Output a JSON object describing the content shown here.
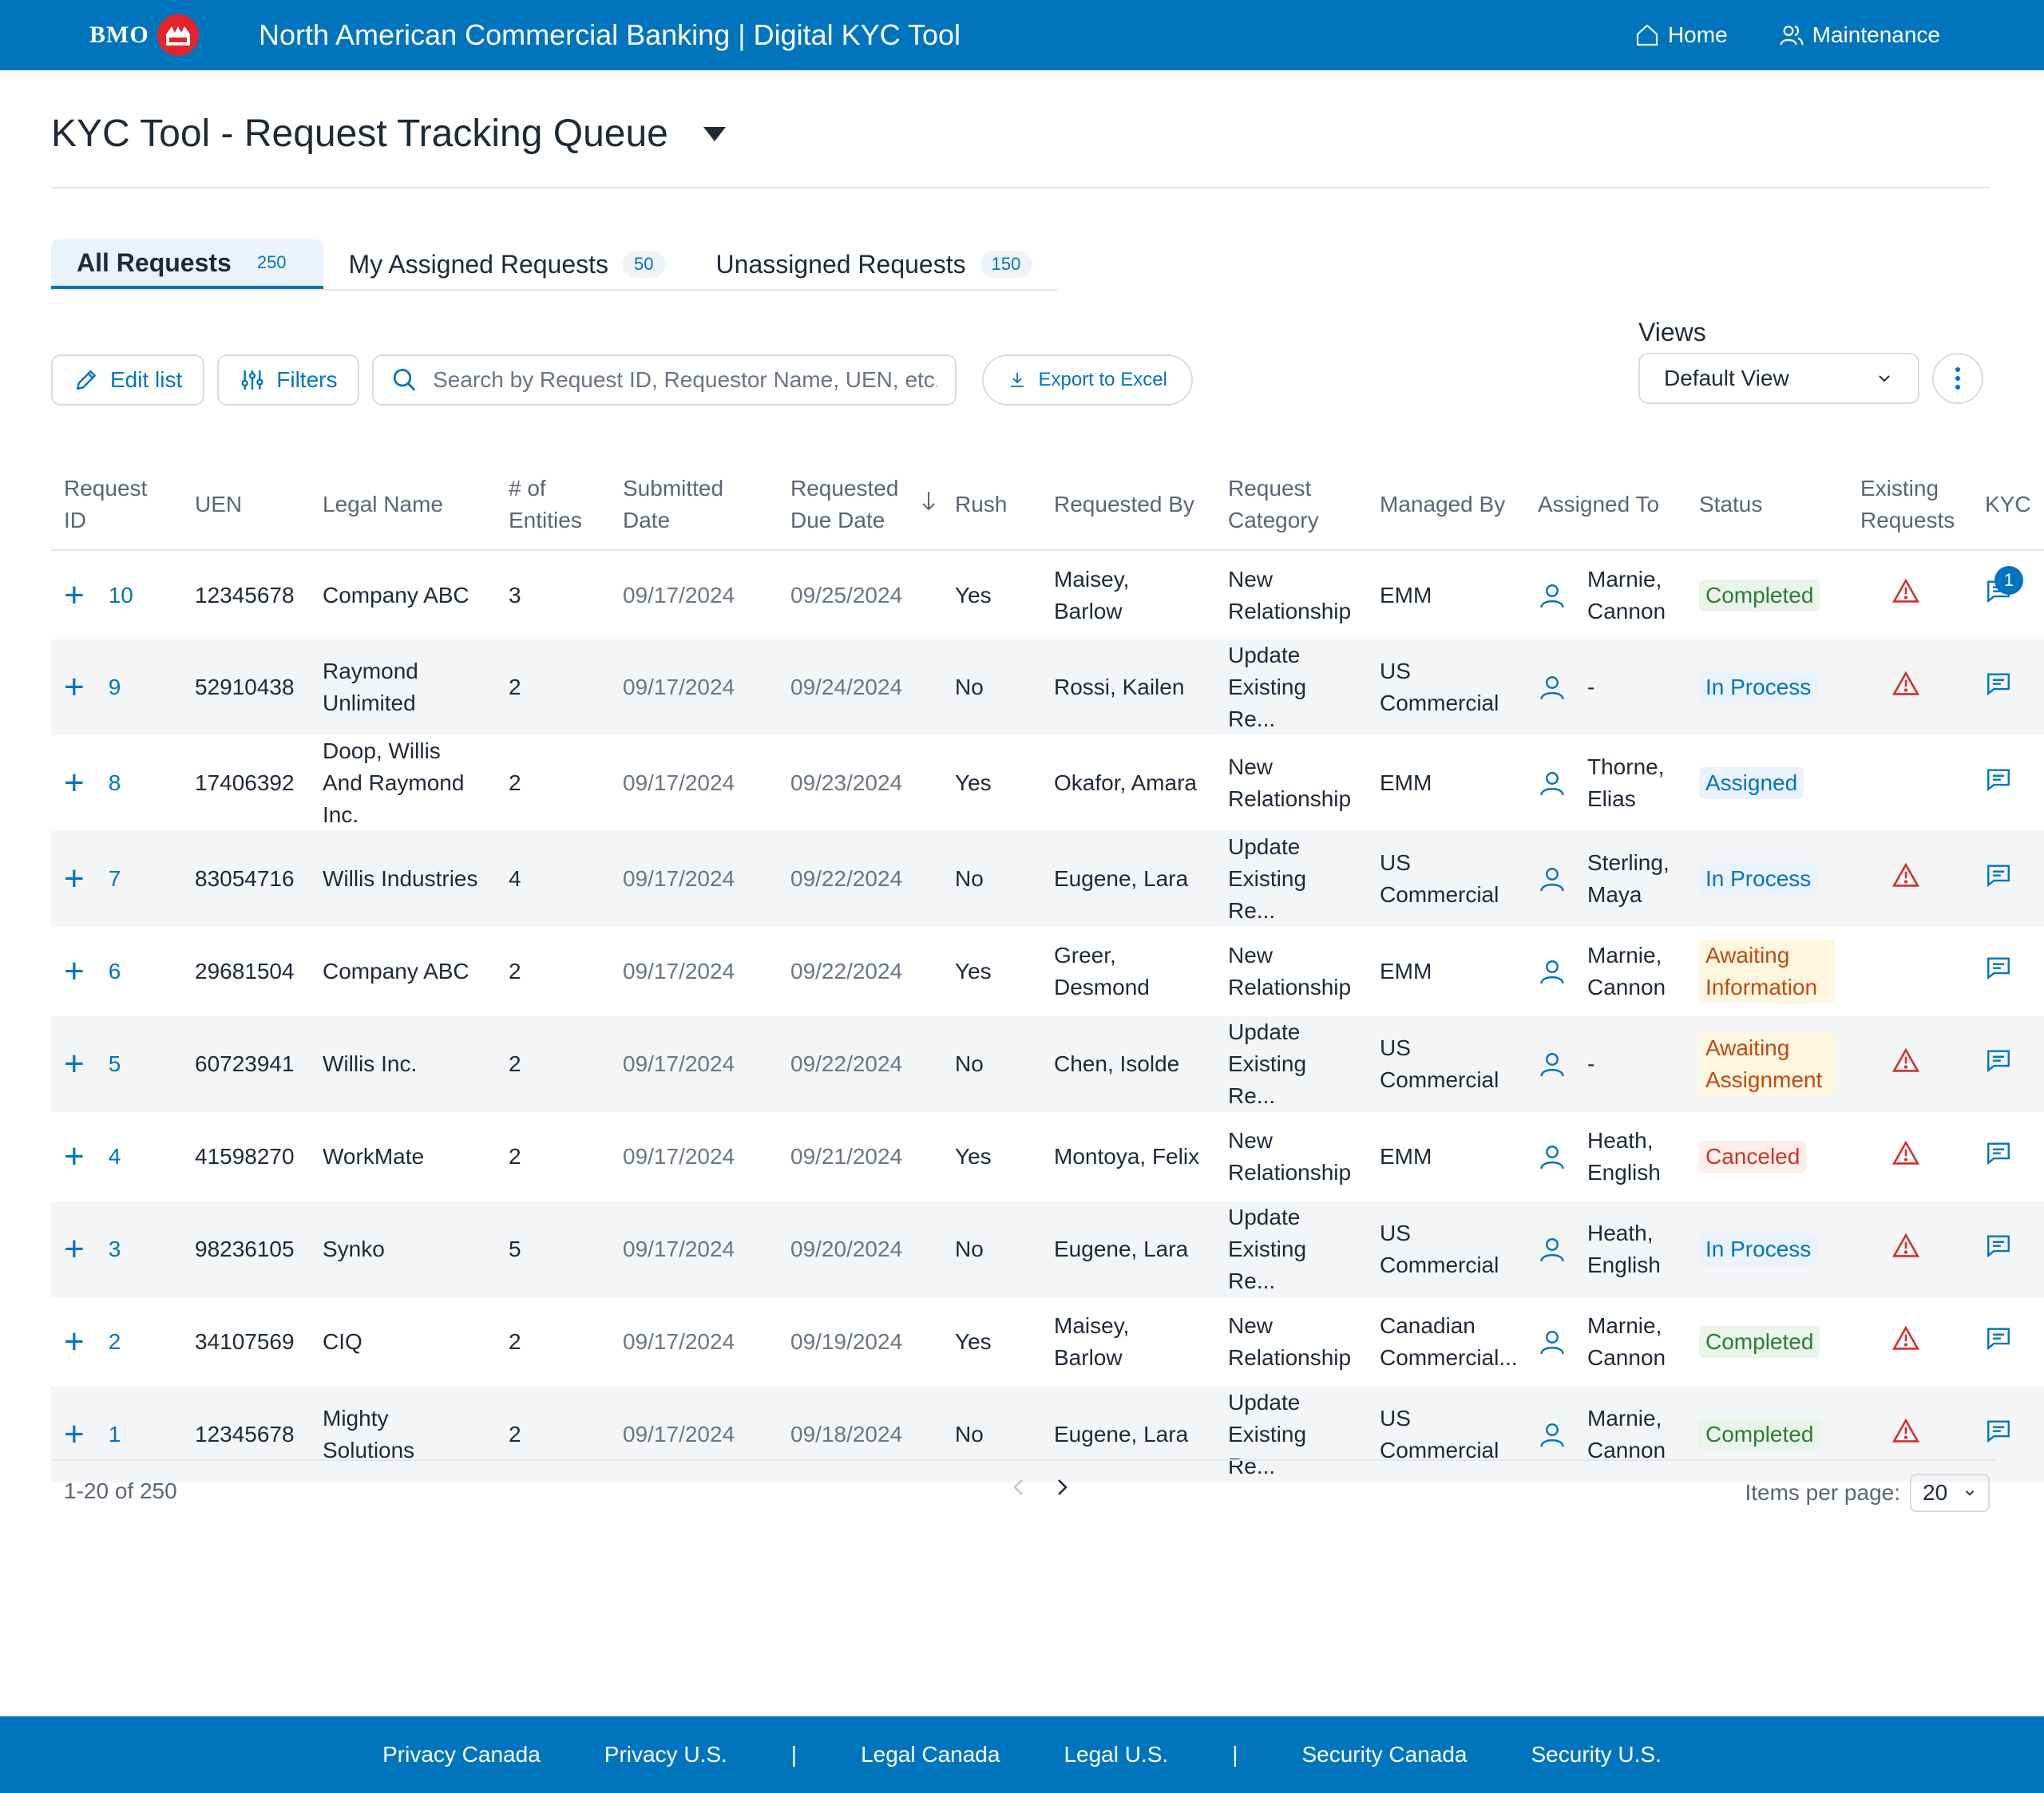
{
  "header": {
    "brand": "BMO",
    "app_title": "North American Commercial Banking | Digital KYC Tool",
    "nav": [
      {
        "label": "Home",
        "icon": "home-icon"
      },
      {
        "label": "Maintenance",
        "icon": "users-icon"
      }
    ],
    "colors": {
      "primary": "#0075be",
      "brand_red": "#e3242b"
    }
  },
  "page": {
    "title": "KYC Tool - Request Tracking Queue"
  },
  "tabs": [
    {
      "label": "All Requests",
      "count": "250",
      "active": true
    },
    {
      "label": "My Assigned Requests",
      "count": "50",
      "active": false
    },
    {
      "label": "Unassigned Requests",
      "count": "150",
      "active": false
    }
  ],
  "toolbar": {
    "edit_label": "Edit list",
    "filters_label": "Filters",
    "search_placeholder": "Search by Request ID, Requestor Name, UEN, etc.",
    "export_label": "Export to Excel"
  },
  "views": {
    "label": "Views",
    "selected": "Default View"
  },
  "table": {
    "columns": [
      "Request ID",
      "UEN",
      "Legal Name",
      "# of Entities",
      "Submitted Date",
      "Requested Due Date",
      "Rush",
      "Requested By",
      "Request Category",
      "Managed By",
      "Assigned To",
      "Status",
      "Existing Requests",
      "KYC"
    ],
    "sort_column": "Requested Due Date",
    "rows": [
      {
        "id": "10",
        "uen": "12345678",
        "legal_name": "Company ABC",
        "entities": "3",
        "submitted": "09/17/2024",
        "due": "09/25/2024",
        "rush": "Yes",
        "requested_by": "Maisey, Barlow",
        "category": "New Relationship",
        "managed_by": "EMM",
        "assigned_to": "Marnie, Cannon",
        "status": "Completed",
        "status_type": "completed",
        "warning": true,
        "kyc_count": "1"
      },
      {
        "id": "9",
        "uen": "52910438",
        "legal_name": "Raymond Unlimited",
        "entities": "2",
        "submitted": "09/17/2024",
        "due": "09/24/2024",
        "rush": "No",
        "requested_by": "Rossi, Kailen",
        "category": "Update Existing Re...",
        "managed_by": "US Commercial",
        "assigned_to": "-",
        "status": "In Process",
        "status_type": "process",
        "warning": true,
        "kyc_count": ""
      },
      {
        "id": "8",
        "uen": "17406392",
        "legal_name": "Doop, Willis And Raymond Inc.",
        "entities": "2",
        "submitted": "09/17/2024",
        "due": "09/23/2024",
        "rush": "Yes",
        "requested_by": "Okafor, Amara",
        "category": "New Relationship",
        "managed_by": "EMM",
        "assigned_to": "Thorne, Elias",
        "status": "Assigned",
        "status_type": "assigned",
        "warning": false,
        "kyc_count": ""
      },
      {
        "id": "7",
        "uen": "83054716",
        "legal_name": "Willis Industries",
        "entities": "4",
        "submitted": "09/17/2024",
        "due": "09/22/2024",
        "rush": "No",
        "requested_by": "Eugene, Lara",
        "category": "Update Existing Re...",
        "managed_by": "US Commercial",
        "assigned_to": "Sterling, Maya",
        "status": "In Process",
        "status_type": "process",
        "warning": true,
        "kyc_count": ""
      },
      {
        "id": "6",
        "uen": "29681504",
        "legal_name": "Company ABC",
        "entities": "2",
        "submitted": "09/17/2024",
        "due": "09/22/2024",
        "rush": "Yes",
        "requested_by": "Greer, Desmond",
        "category": "New Relationship",
        "managed_by": "EMM",
        "assigned_to": "Marnie, Cannon",
        "status": "Awaiting Information",
        "status_type": "awaiting",
        "warning": false,
        "kyc_count": ""
      },
      {
        "id": "5",
        "uen": "60723941",
        "legal_name": "Willis Inc.",
        "entities": "2",
        "submitted": "09/17/2024",
        "due": "09/22/2024",
        "rush": "No",
        "requested_by": "Chen, Isolde",
        "category": "Update Existing Re...",
        "managed_by": "US Commercial",
        "assigned_to": "-",
        "status": "Awaiting Assignment",
        "status_type": "awaiting",
        "warning": true,
        "kyc_count": ""
      },
      {
        "id": "4",
        "uen": "41598270",
        "legal_name": "WorkMate",
        "entities": "2",
        "submitted": "09/17/2024",
        "due": "09/21/2024",
        "rush": "Yes",
        "requested_by": "Montoya, Felix",
        "category": "New Relationship",
        "managed_by": "EMM",
        "assigned_to": "Heath, English",
        "status": "Canceled",
        "status_type": "canceled",
        "warning": true,
        "kyc_count": ""
      },
      {
        "id": "3",
        "uen": "98236105",
        "legal_name": "Synko",
        "entities": "5",
        "submitted": "09/17/2024",
        "due": "09/20/2024",
        "rush": "No",
        "requested_by": "Eugene, Lara",
        "category": "Update Existing Re...",
        "managed_by": "US Commercial",
        "assigned_to": "Heath, English",
        "status": "In Process",
        "status_type": "process",
        "warning": true,
        "kyc_count": ""
      },
      {
        "id": "2",
        "uen": "34107569",
        "legal_name": "CIQ",
        "entities": "2",
        "submitted": "09/17/2024",
        "due": "09/19/2024",
        "rush": "Yes",
        "requested_by": "Maisey, Barlow",
        "category": "New Relationship",
        "managed_by": "Canadian Commercial...",
        "assigned_to": "Marnie, Cannon",
        "status": "Completed",
        "status_type": "completed",
        "warning": true,
        "kyc_count": ""
      },
      {
        "id": "1",
        "uen": "12345678",
        "legal_name": "Mighty Solutions",
        "entities": "2",
        "submitted": "09/17/2024",
        "due": "09/18/2024",
        "rush": "No",
        "requested_by": "Eugene, Lara",
        "category": "Update Existing Re...",
        "managed_by": "US Commercial",
        "assigned_to": "Marnie, Cannon",
        "status": "Completed",
        "status_type": "completed",
        "warning": true,
        "kyc_count": ""
      }
    ]
  },
  "pagination": {
    "range": "1-20 of 250",
    "items_per_page_label": "Items per page:",
    "items_per_page": "20"
  },
  "footer": {
    "links": [
      "Privacy Canada",
      "Privacy U.S.",
      "|",
      "Legal Canada",
      "Legal U.S.",
      "|",
      "Security Canada",
      "Security U.S."
    ]
  }
}
